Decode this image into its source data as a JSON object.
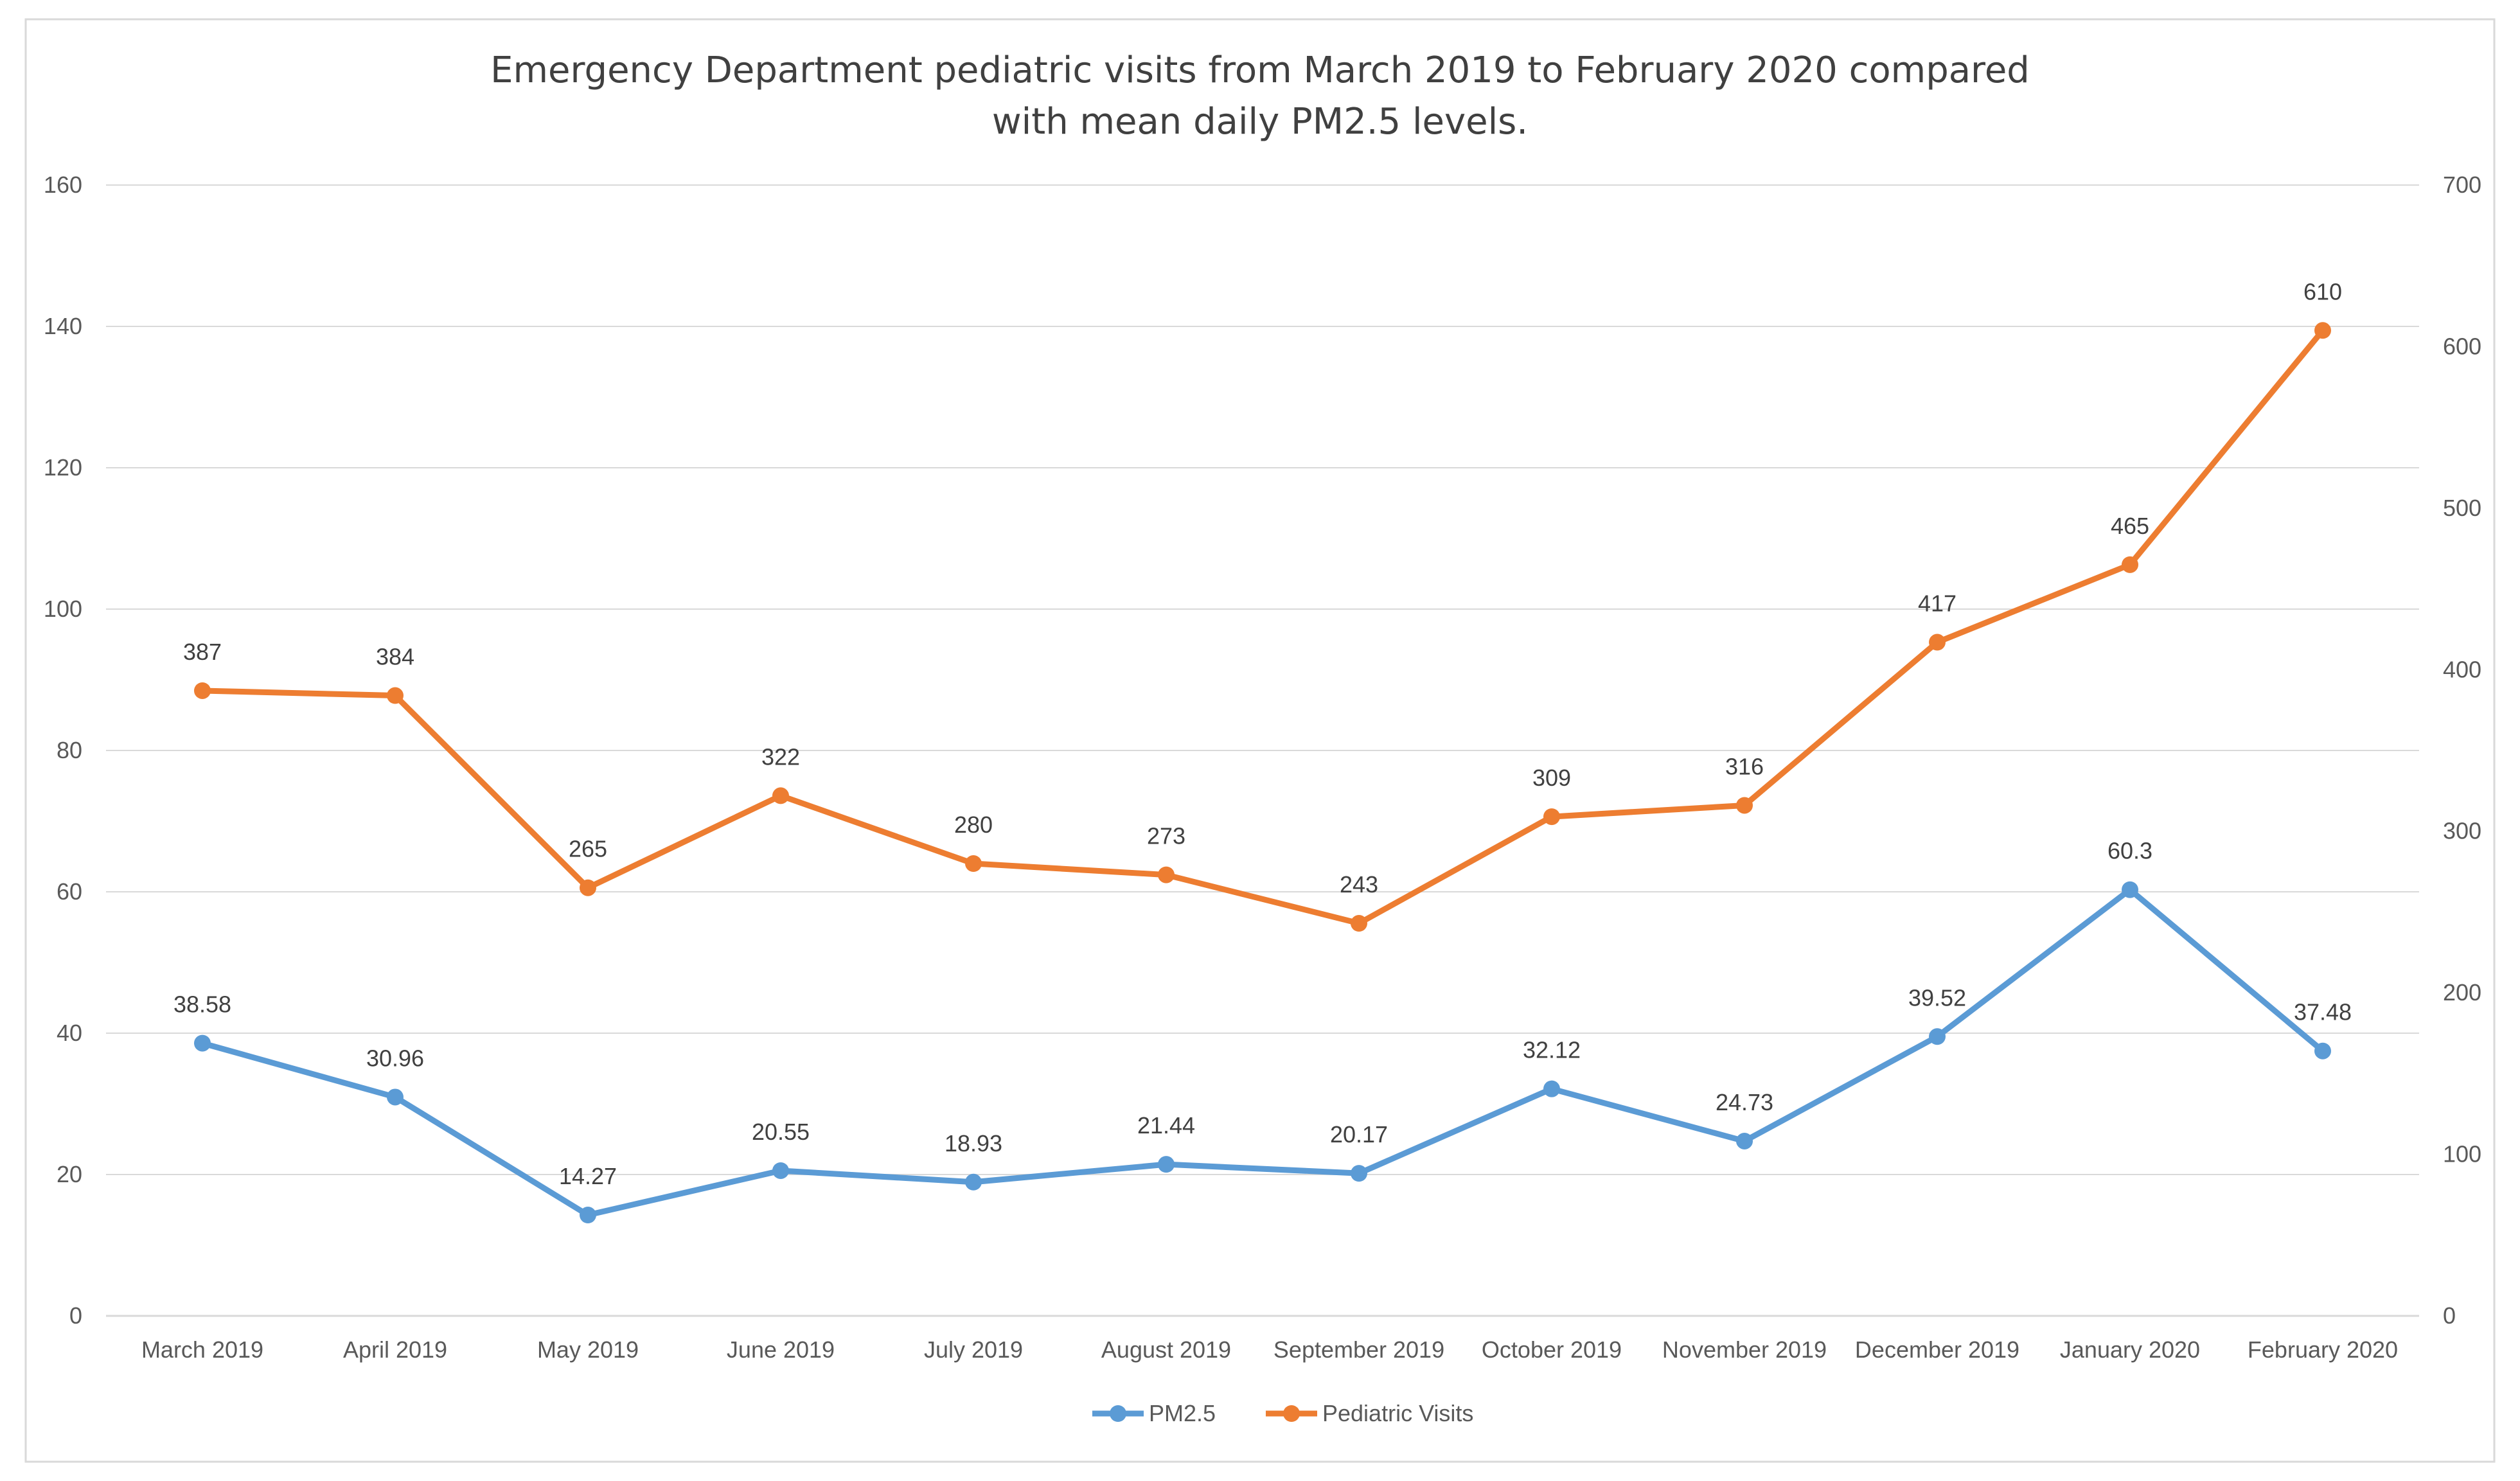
{
  "chart_data": {
    "type": "line",
    "title_line1": "Emergency Department pediatric visits from March 2019 to February 2020 compared",
    "title_line2": "with mean daily PM2.5 levels.",
    "categories": [
      "March 2019",
      "April 2019",
      "May 2019",
      "June 2019",
      "July 2019",
      "August 2019",
      "September 2019",
      "October 2019",
      "November 2019",
      "December 2019",
      "January 2020",
      "February 2020"
    ],
    "y_left": {
      "ylim": [
        0,
        160
      ],
      "ticks": [
        "0",
        "20",
        "40",
        "60",
        "80",
        "100",
        "120",
        "140",
        "160"
      ]
    },
    "y_right": {
      "ylim": [
        0,
        700
      ],
      "ticks": [
        "0",
        "100",
        "200",
        "300",
        "400",
        "500",
        "600",
        "700"
      ]
    },
    "grid": true,
    "legend_position": "bottom",
    "series": [
      {
        "name": "PM2.5",
        "axis": "left",
        "color": "#5B9BD5",
        "values": [
          38.58,
          30.96,
          14.27,
          20.55,
          18.93,
          21.44,
          20.17,
          32.12,
          24.73,
          39.52,
          60.3,
          37.48
        ],
        "labels": [
          "38.58",
          "30.96",
          "14.27",
          "20.55",
          "18.93",
          "21.44",
          "20.17",
          "32.12",
          "24.73",
          "39.52",
          "60.3",
          "37.48"
        ]
      },
      {
        "name": "Pediatric Visits",
        "axis": "right",
        "color": "#ED7D31",
        "values": [
          387,
          384,
          265,
          322,
          280,
          273,
          243,
          309,
          316,
          417,
          465,
          610
        ],
        "labels": [
          "387",
          "384",
          "265",
          "322",
          "280",
          "273",
          "243",
          "309",
          "316",
          "417",
          "465",
          "610"
        ]
      }
    ]
  }
}
